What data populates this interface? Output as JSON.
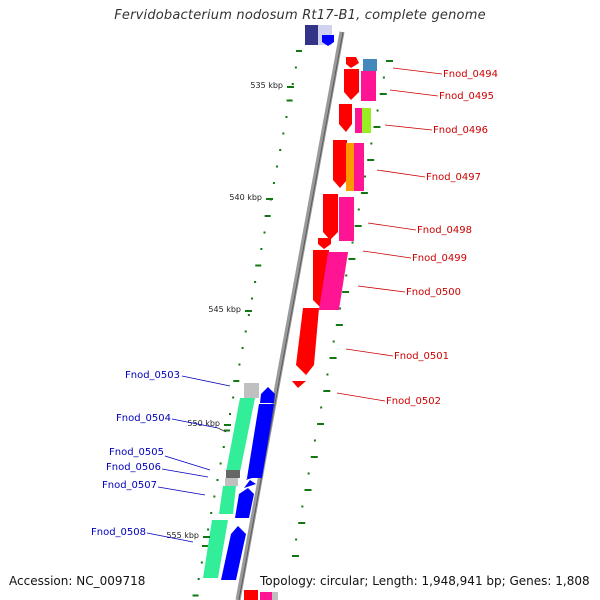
{
  "title": "Fervidobacterium nodosum Rt17-B1, complete genome",
  "footer": {
    "accession": "Accession: NC_009718",
    "summary": "Topology: circular; Length: 1,948,941 bp; Genes: 1,808"
  },
  "ticks": [
    {
      "label": "535 kbp"
    },
    {
      "label": "540 kbp"
    },
    {
      "label": "545 kbp"
    },
    {
      "label": "550 kbp"
    },
    {
      "label": "555 kbp"
    }
  ],
  "forward_genes": [
    {
      "label": "Fnod_0494"
    },
    {
      "label": "Fnod_0495"
    },
    {
      "label": "Fnod_0496"
    },
    {
      "label": "Fnod_0497"
    },
    {
      "label": "Fnod_0498"
    },
    {
      "label": "Fnod_0499"
    },
    {
      "label": "Fnod_0500"
    },
    {
      "label": "Fnod_0501"
    },
    {
      "label": "Fnod_0502"
    }
  ],
  "reverse_genes": [
    {
      "label": "Fnod_0503"
    },
    {
      "label": "Fnod_0504"
    },
    {
      "label": "Fnod_0505"
    },
    {
      "label": "Fnod_0506"
    },
    {
      "label": "Fnod_0507"
    },
    {
      "label": "Fnod_0508"
    }
  ],
  "colors": {
    "forward_cds": "#ff0000",
    "forward_feature": "#ff1493",
    "reverse_cds": "#0000ff",
    "reverse_feature": "#33ee99",
    "backbone": "#888888",
    "forward_label": "#cc0000",
    "reverse_label": "#0000bb",
    "gc_tick": "#117711",
    "orange_feature": "#ff9900",
    "lime_feature": "#99ee22",
    "steel_feature": "#4488bb",
    "grey_feature": "#c0c0c0",
    "dark_feature": "#666666",
    "lavender": "#ccccee",
    "navy": "#333388"
  }
}
